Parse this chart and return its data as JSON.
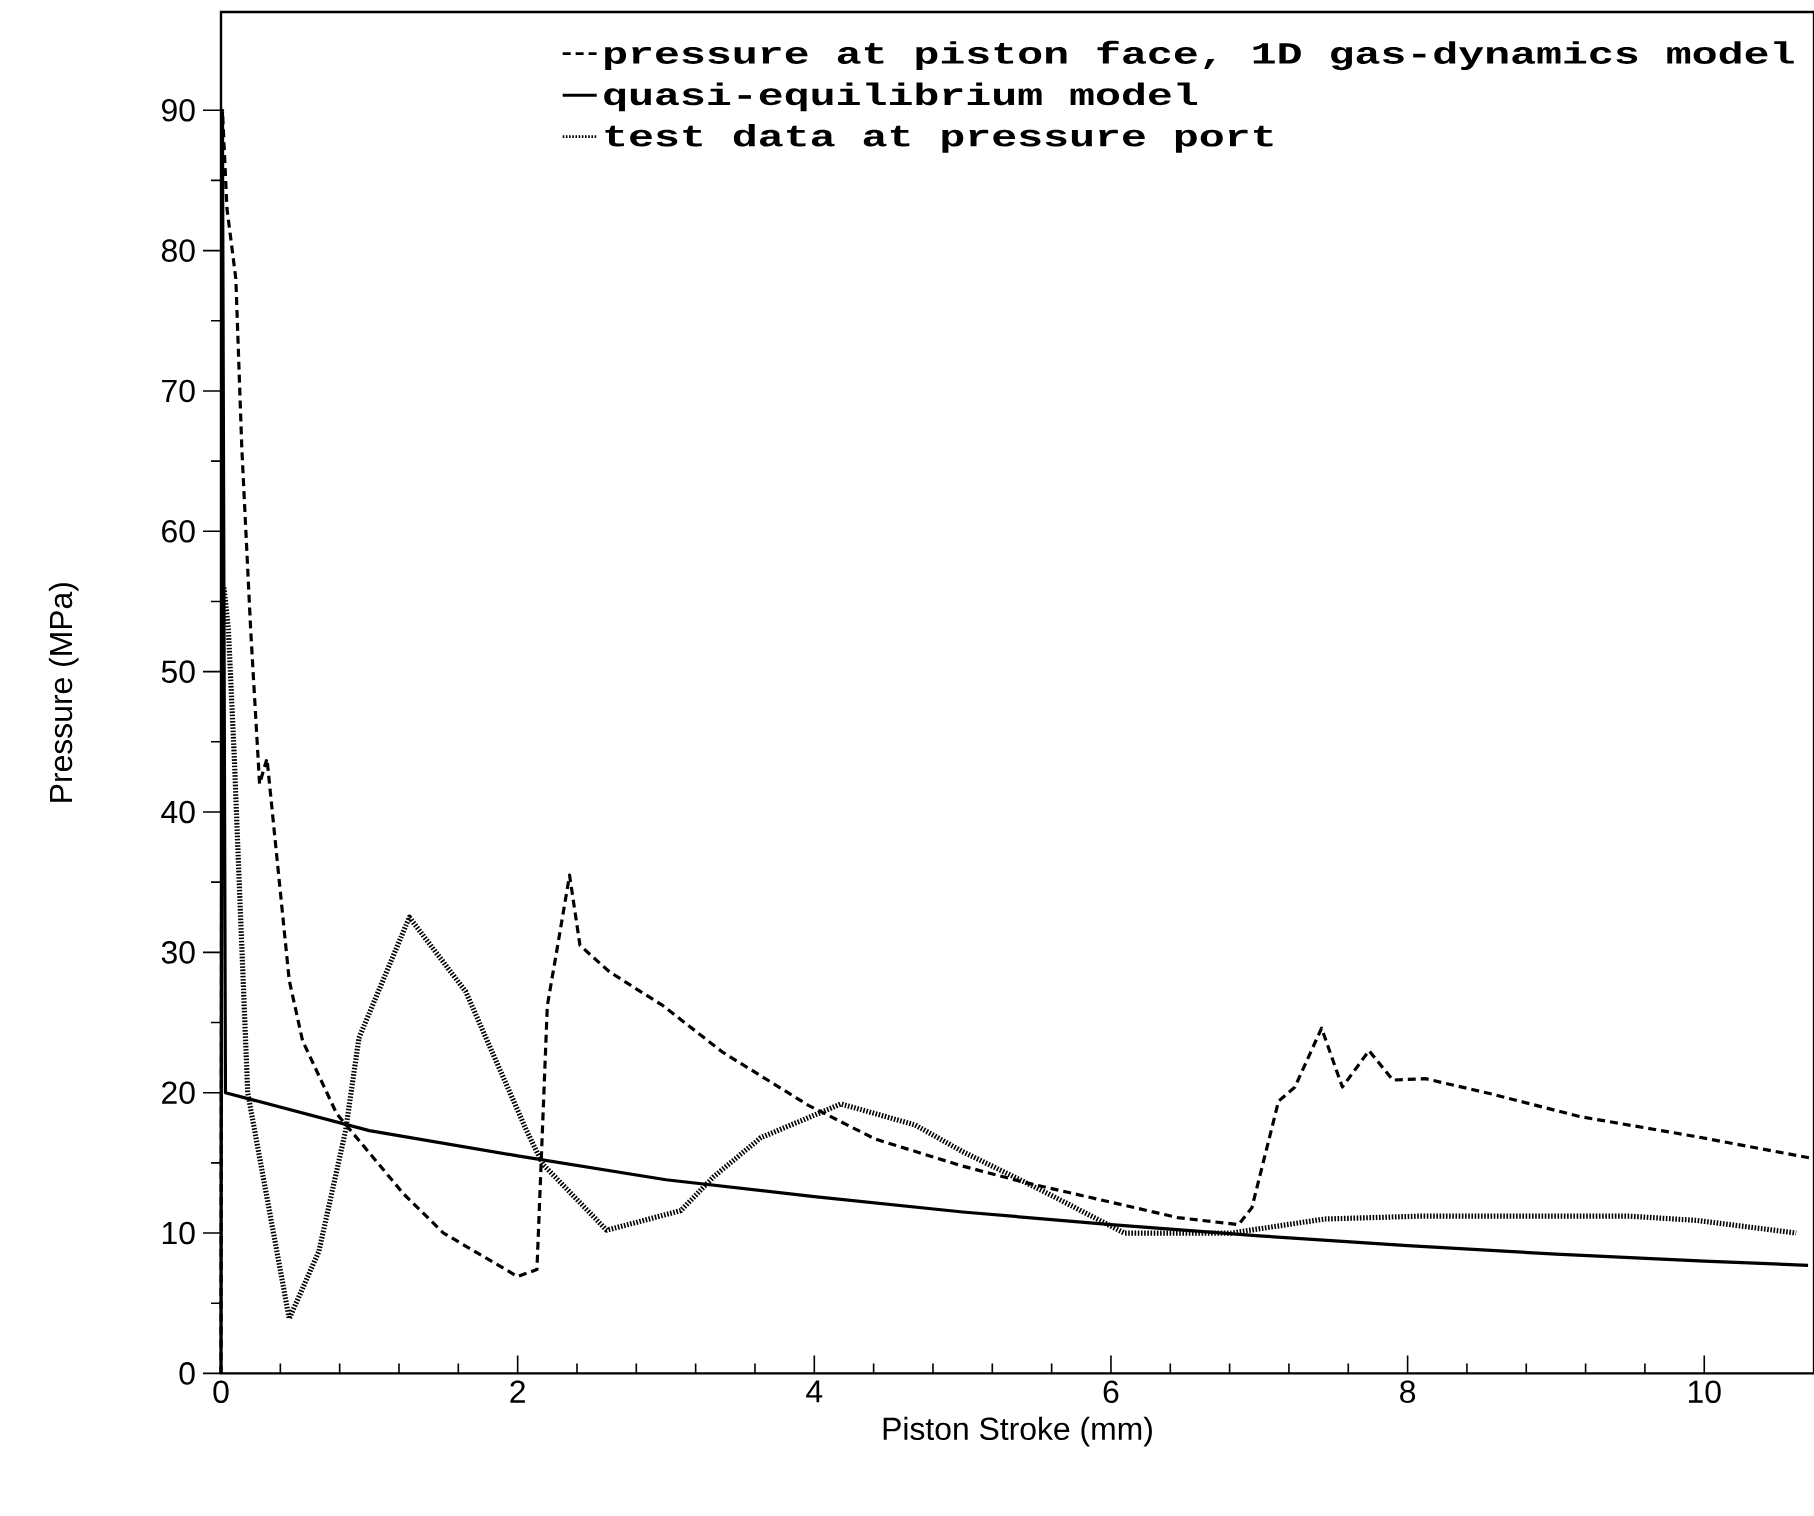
{
  "chart_data": {
    "type": "line",
    "xlabel": "Piston Stroke (mm)",
    "ylabel": "Pressure (MPa)",
    "xlim": [
      0,
      10.74
    ],
    "ylim": [
      0,
      97
    ],
    "xticks": [
      0,
      2,
      4,
      6,
      8,
      10
    ],
    "yticks": [
      0,
      10,
      20,
      30,
      40,
      50,
      60,
      70,
      80,
      90
    ],
    "legend": "top right",
    "grid": false,
    "marker": "none",
    "series": [
      {
        "name": "pressure at piston face, 1D gas-dynamics model",
        "color": "#000000",
        "line_style": "dashed",
        "x": [
          0,
          0.01,
          0.04,
          0.1,
          0.14,
          0.2,
          0.26,
          0.31,
          0.46,
          0.55,
          0.78,
          1.23,
          1.5,
          2.0,
          2.13,
          2.2,
          2.27,
          2.35,
          2.42,
          2.62,
          2.98,
          3.38,
          3.96,
          4.41,
          4.99,
          5.42,
          6.0,
          6.45,
          6.86,
          6.95,
          7.13,
          7.24,
          7.42,
          7.56,
          7.74,
          7.9,
          8.12,
          8.57,
          9.16,
          9.93,
          10.74
        ],
        "values": [
          0,
          90,
          83,
          78,
          66,
          53,
          42,
          43.8,
          28,
          23.7,
          18.5,
          12.8,
          10,
          6.9,
          7.4,
          26.2,
          30.5,
          35.5,
          30.5,
          28.6,
          26.2,
          22.9,
          19.1,
          16.7,
          14.8,
          13.6,
          12.2,
          11.1,
          10.6,
          11.8,
          19.4,
          20.4,
          24.6,
          20.4,
          23,
          20.9,
          21,
          19.9,
          18.3,
          16.9,
          15.3
        ]
      },
      {
        "name": "quasi-equilibrium model",
        "color": "#000000",
        "line_style": "solid",
        "x": [
          0,
          0.01,
          0.03,
          1,
          2,
          3,
          4,
          5,
          6,
          7,
          8,
          9,
          10,
          10.7
        ],
        "values": [
          0,
          89,
          20,
          17.3,
          15.5,
          13.8,
          12.6,
          11.5,
          10.6,
          9.8,
          9.1,
          8.5,
          8.0,
          7.7
        ]
      },
      {
        "name": "test data at pressure port",
        "color": "#000000",
        "line_style": "dotted",
        "x": [
          0.02,
          0.05,
          0.09,
          0.12,
          0.18,
          0.46,
          0.66,
          0.84,
          0.93,
          1.27,
          1.65,
          2.06,
          2.17,
          2.6,
          3.1,
          3.32,
          3.64,
          4.18,
          4.68,
          5.0,
          5.54,
          6.09,
          6.81,
          7.44,
          8.07,
          9.5,
          9.95,
          10.62
        ],
        "values": [
          56,
          53,
          43.8,
          35.7,
          20,
          3.9,
          8.7,
          17.3,
          23.9,
          32.5,
          27.2,
          17.3,
          14.9,
          10.2,
          11.6,
          14,
          16.8,
          19.2,
          17.7,
          15.8,
          13,
          10,
          10,
          11,
          11.2,
          11.2,
          10.9,
          10
        ]
      }
    ]
  }
}
